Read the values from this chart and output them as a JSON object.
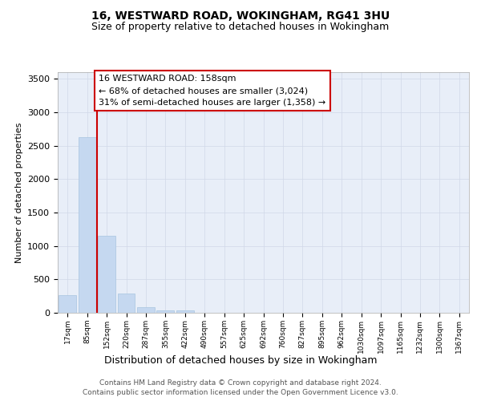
{
  "title_line1": "16, WESTWARD ROAD, WOKINGHAM, RG41 3HU",
  "title_line2": "Size of property relative to detached houses in Wokingham",
  "xlabel": "Distribution of detached houses by size in Wokingham",
  "ylabel": "Number of detached properties",
  "categories": [
    "17sqm",
    "85sqm",
    "152sqm",
    "220sqm",
    "287sqm",
    "355sqm",
    "422sqm",
    "490sqm",
    "557sqm",
    "625sqm",
    "692sqm",
    "760sqm",
    "827sqm",
    "895sqm",
    "962sqm",
    "1030sqm",
    "1097sqm",
    "1165sqm",
    "1232sqm",
    "1300sqm",
    "1367sqm"
  ],
  "bar_heights": [
    270,
    2630,
    1155,
    285,
    90,
    42,
    35,
    0,
    0,
    0,
    0,
    0,
    0,
    0,
    0,
    0,
    0,
    0,
    0,
    0,
    0
  ],
  "bar_color": "#c5d8f0",
  "bar_edge_color": "#a8c4e0",
  "grid_color": "#d0d8e8",
  "plot_bg_color": "#e8eef8",
  "reference_line_color": "#cc0000",
  "reference_line_x": 1.5,
  "annotation_text": "16 WESTWARD ROAD: 158sqm\n← 68% of detached houses are smaller (3,024)\n31% of semi-detached houses are larger (1,358) →",
  "annotation_box_edgecolor": "#cc0000",
  "ylim": [
    0,
    3600
  ],
  "yticks": [
    0,
    500,
    1000,
    1500,
    2000,
    2500,
    3000,
    3500
  ],
  "footer_line1": "Contains HM Land Registry data © Crown copyright and database right 2024.",
  "footer_line2": "Contains public sector information licensed under the Open Government Licence v3.0."
}
